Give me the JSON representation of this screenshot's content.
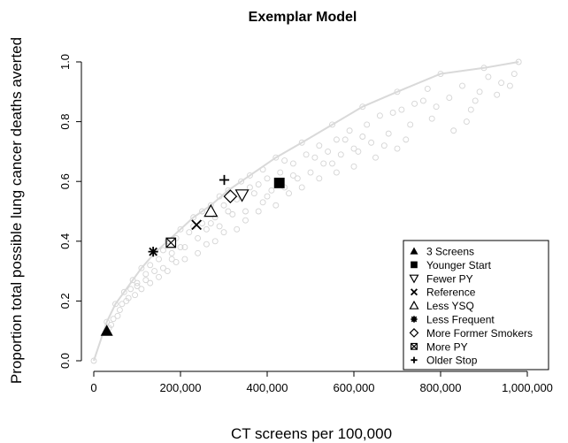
{
  "chart_data": {
    "type": "scatter",
    "title": "Exemplar Model",
    "xlabel": "CT screens per 100,000",
    "ylabel": "Proportion total possible lung cancer deaths averted",
    "xlim": [
      0,
      1000000
    ],
    "ylim": [
      0,
      1.0
    ],
    "xticks": [
      0,
      200000,
      400000,
      600000,
      800000,
      1000000
    ],
    "xtick_labels": [
      "0",
      "200,000",
      "400,000",
      "600,000",
      "800,000",
      "1,000,000"
    ],
    "yticks": [
      0,
      0.2,
      0.4,
      0.6,
      0.8,
      1.0
    ],
    "ytick_labels": [
      "0.0",
      "0.2",
      "0.4",
      "0.6",
      "0.8",
      "1.0"
    ],
    "grid": false,
    "legend_position": "bottom-right",
    "background_series": {
      "color": "#d4d4d4",
      "marker": "open-circle",
      "points": [
        [
          0,
          0
        ],
        [
          30000,
          0.13
        ],
        [
          50000,
          0.19
        ],
        [
          70000,
          0.23
        ],
        [
          90000,
          0.27
        ],
        [
          110000,
          0.31
        ],
        [
          140000,
          0.36
        ],
        [
          170000,
          0.4
        ],
        [
          200000,
          0.44
        ],
        [
          230000,
          0.48
        ],
        [
          270000,
          0.52
        ],
        [
          310000,
          0.57
        ],
        [
          360000,
          0.62
        ],
        [
          420000,
          0.68
        ],
        [
          480000,
          0.73
        ],
        [
          550000,
          0.79
        ],
        [
          620000,
          0.85
        ],
        [
          700000,
          0.9
        ],
        [
          800000,
          0.96
        ],
        [
          900000,
          0.98
        ],
        [
          980000,
          1.0
        ],
        [
          60000,
          0.17
        ],
        [
          80000,
          0.21
        ],
        [
          100000,
          0.26
        ],
        [
          120000,
          0.29
        ],
        [
          130000,
          0.32
        ],
        [
          150000,
          0.34
        ],
        [
          160000,
          0.31
        ],
        [
          180000,
          0.36
        ],
        [
          190000,
          0.41
        ],
        [
          210000,
          0.38
        ],
        [
          220000,
          0.43
        ],
        [
          240000,
          0.41
        ],
        [
          250000,
          0.46
        ],
        [
          260000,
          0.44
        ],
        [
          280000,
          0.48
        ],
        [
          290000,
          0.45
        ],
        [
          300000,
          0.52
        ],
        [
          320000,
          0.49
        ],
        [
          330000,
          0.54
        ],
        [
          350000,
          0.5
        ],
        [
          370000,
          0.56
        ],
        [
          380000,
          0.59
        ],
        [
          390000,
          0.53
        ],
        [
          400000,
          0.61
        ],
        [
          410000,
          0.57
        ],
        [
          430000,
          0.63
        ],
        [
          440000,
          0.58
        ],
        [
          460000,
          0.66
        ],
        [
          470000,
          0.61
        ],
        [
          490000,
          0.69
        ],
        [
          500000,
          0.63
        ],
        [
          520000,
          0.72
        ],
        [
          530000,
          0.66
        ],
        [
          560000,
          0.74
        ],
        [
          570000,
          0.69
        ],
        [
          590000,
          0.77
        ],
        [
          600000,
          0.71
        ],
        [
          630000,
          0.79
        ],
        [
          640000,
          0.73
        ],
        [
          660000,
          0.82
        ],
        [
          680000,
          0.76
        ],
        [
          710000,
          0.84
        ],
        [
          730000,
          0.79
        ],
        [
          760000,
          0.87
        ],
        [
          780000,
          0.81
        ],
        [
          830000,
          0.77
        ],
        [
          870000,
          0.84
        ],
        [
          890000,
          0.9
        ],
        [
          940000,
          0.93
        ],
        [
          960000,
          0.92
        ],
        [
          700000,
          0.71
        ],
        [
          650000,
          0.68
        ],
        [
          600000,
          0.65
        ],
        [
          560000,
          0.63
        ],
        [
          520000,
          0.61
        ],
        [
          480000,
          0.58
        ],
        [
          450000,
          0.56
        ],
        [
          420000,
          0.52
        ],
        [
          380000,
          0.5
        ],
        [
          350000,
          0.47
        ],
        [
          330000,
          0.44
        ],
        [
          300000,
          0.43
        ],
        [
          280000,
          0.4
        ],
        [
          260000,
          0.39
        ],
        [
          240000,
          0.36
        ],
        [
          210000,
          0.34
        ],
        [
          190000,
          0.33
        ],
        [
          170000,
          0.3
        ],
        [
          150000,
          0.28
        ],
        [
          130000,
          0.26
        ],
        [
          110000,
          0.24
        ],
        [
          95000,
          0.22
        ],
        [
          75000,
          0.2
        ],
        [
          55000,
          0.15
        ],
        [
          40000,
          0.12
        ],
        [
          620000,
          0.75
        ],
        [
          690000,
          0.83
        ],
        [
          740000,
          0.86
        ],
        [
          770000,
          0.91
        ],
        [
          820000,
          0.88
        ],
        [
          850000,
          0.92
        ],
        [
          910000,
          0.95
        ],
        [
          540000,
          0.7
        ],
        [
          580000,
          0.74
        ],
        [
          460000,
          0.62
        ],
        [
          400000,
          0.55
        ],
        [
          360000,
          0.58
        ],
        [
          310000,
          0.5
        ],
        [
          270000,
          0.46
        ],
        [
          230000,
          0.45
        ],
        [
          200000,
          0.38
        ],
        [
          180000,
          0.34
        ],
        [
          160000,
          0.37
        ],
        [
          140000,
          0.3
        ],
        [
          120000,
          0.27
        ],
        [
          100000,
          0.25
        ],
        [
          85000,
          0.24
        ],
        [
          65000,
          0.19
        ],
        [
          45000,
          0.14
        ],
        [
          35000,
          0.11
        ],
        [
          250000,
          0.5
        ],
        [
          290000,
          0.55
        ],
        [
          340000,
          0.6
        ],
        [
          390000,
          0.64
        ],
        [
          440000,
          0.67
        ],
        [
          510000,
          0.68
        ],
        [
          550000,
          0.66
        ],
        [
          610000,
          0.7
        ],
        [
          670000,
          0.72
        ],
        [
          720000,
          0.74
        ],
        [
          790000,
          0.85
        ],
        [
          860000,
          0.8
        ],
        [
          880000,
          0.87
        ],
        [
          930000,
          0.89
        ],
        [
          970000,
          0.96
        ]
      ]
    },
    "series": [
      {
        "name": "3 Screens",
        "marker": "filled-triangle",
        "x": 30000,
        "y": 0.1
      },
      {
        "name": "Younger Start",
        "marker": "filled-square",
        "x": 428000,
        "y": 0.595
      },
      {
        "name": "Fewer PY",
        "marker": "open-down-triangle",
        "x": 342000,
        "y": 0.555
      },
      {
        "name": "Reference",
        "marker": "x-cross",
        "x": 237000,
        "y": 0.455
      },
      {
        "name": "Less YSQ",
        "marker": "open-triangle",
        "x": 270000,
        "y": 0.5
      },
      {
        "name": "Less Frequent",
        "marker": "asterisk",
        "x": 137000,
        "y": 0.365
      },
      {
        "name": "More Former Smokers",
        "marker": "open-diamond",
        "x": 315000,
        "y": 0.55
      },
      {
        "name": "More PY",
        "marker": "boxed-x",
        "x": 178000,
        "y": 0.395
      },
      {
        "name": "Older Stop",
        "marker": "plus",
        "x": 301000,
        "y": 0.605
      }
    ],
    "colors": {
      "markers": "#000000",
      "background": "#d4d4d4"
    }
  }
}
